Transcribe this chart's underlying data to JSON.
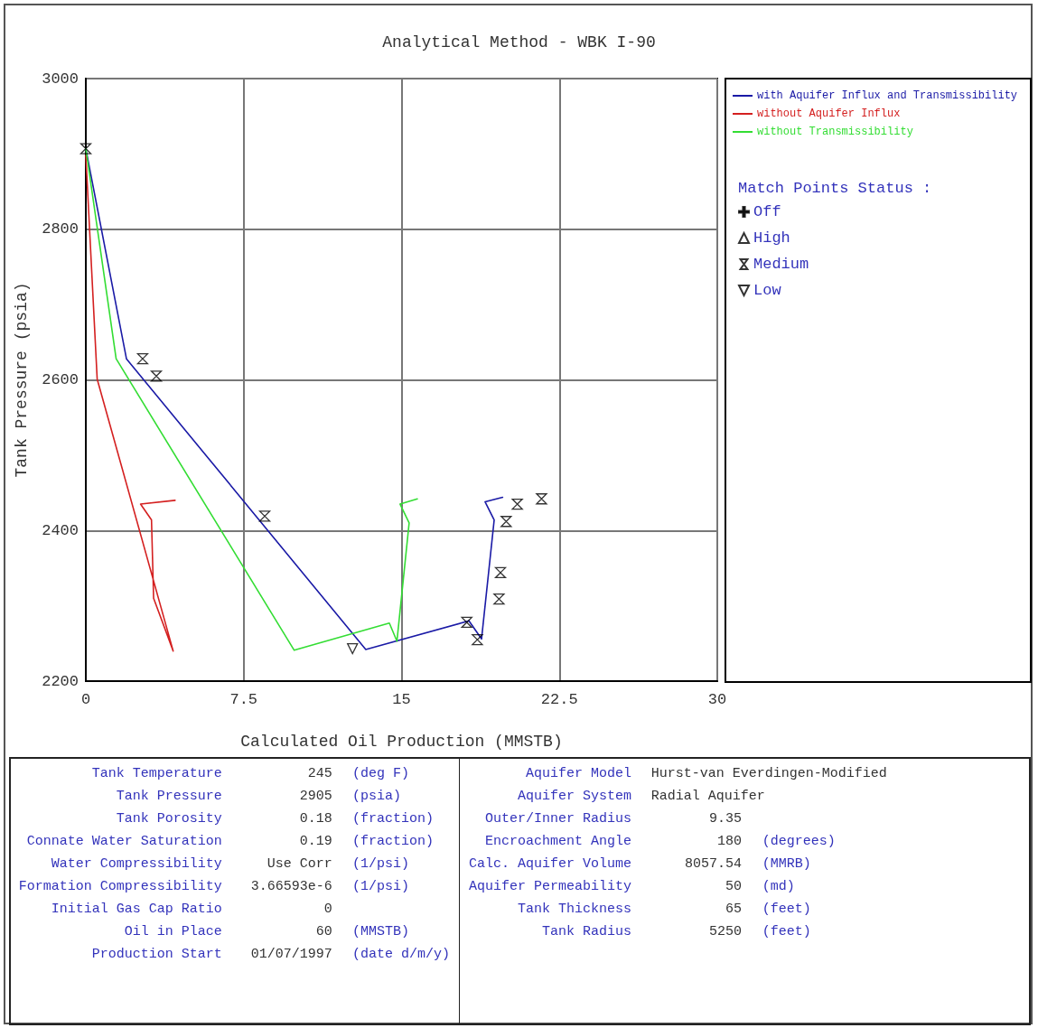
{
  "chart_data": {
    "type": "line",
    "title": "Analytical Method - WBK I-90",
    "xlabel": "Calculated Oil Production (MMSTB)",
    "ylabel": "Tank Pressure (psia)",
    "xlim": [
      0,
      30
    ],
    "xticks": [
      0,
      7.5,
      15,
      22.5,
      30
    ],
    "ylim": [
      2200,
      3000
    ],
    "yticks": [
      2200,
      2400,
      2600,
      2800,
      3000
    ],
    "grid": true,
    "legend": "right",
    "legend_title": "Match Points Status :",
    "series": [
      {
        "name": "with Aquifer Influx and Transmissibility",
        "color": "#1a1aa6",
        "x": [
          0,
          1.93,
          13.3,
          18.2,
          18.8,
          19.4,
          18.97,
          19.8
        ],
        "values": [
          2907,
          2628,
          2242,
          2280,
          2256,
          2414,
          2438,
          2444
        ]
      },
      {
        "name": "without Aquifer Influx",
        "color": "#d42020",
        "x": [
          0,
          0.54,
          4.15,
          3.22,
          3.12,
          2.6,
          4.24
        ],
        "values": [
          2898,
          2601,
          2240,
          2310,
          2414,
          2435,
          2440
        ]
      },
      {
        "name": "without Transmissibility",
        "color": "#33dd33",
        "x": [
          0,
          1.44,
          9.9,
          14.42,
          14.78,
          15.36,
          14.93,
          15.75
        ],
        "values": [
          2907,
          2628,
          2241,
          2277,
          2253,
          2410,
          2435,
          2442
        ]
      },
      {
        "name": "Off",
        "type": "scatter",
        "marker": "cross",
        "color": "#000000"
      },
      {
        "name": "High",
        "type": "scatter",
        "marker": "triangle",
        "color": "#000000"
      },
      {
        "name": "Medium",
        "type": "scatter",
        "color": "#000000",
        "x": [
          0,
          2.7,
          3.35,
          8.5,
          18.1,
          18.6,
          19.63,
          19.7,
          19.97,
          20.5,
          21.65
        ],
        "values": [
          2907,
          2628,
          2605,
          2419,
          2278,
          2255,
          2309,
          2344,
          2412,
          2435,
          2442
        ]
      },
      {
        "name": "Low",
        "type": "scatter",
        "marker": "triangle-down",
        "color": "#000000",
        "x": [
          12.67
        ],
        "values": [
          2243
        ]
      }
    ],
    "annotations": [
      "Tank Temperature\t245\t(deg F)",
      "Tank Pressure\t2905\t(psia)",
      "Tank Porosity\t0.18\t(fraction)",
      "Connate Water Saturation\t0.19\t(fraction)",
      "Water Compressibility\tUse Corr\t(1/psi)",
      "Formation Compressibility\t3.66593e-6\t(1/psi)",
      "Initial Gas Cap Ratio\t0",
      "Oil in Place\t60\t(MMSTB)",
      "Production Start\t01/07/1997\t(date d/m/y)",
      "Aquifer Model\tHurst-van Everdingen-Modified",
      "Aquifer System\tRadial Aquifer",
      "Outer/Inner Radius\t9.35",
      "Encroachment Angle\t180\t(degrees)",
      "Calc. Aquifer Volume\t8057.54\t(MMRB)",
      "Aquifer Permeability\t50\t(md)",
      "Tank Thickness\t65\t(feet)",
      "Tank Radius\t5250\t(feet)"
    ]
  }
}
